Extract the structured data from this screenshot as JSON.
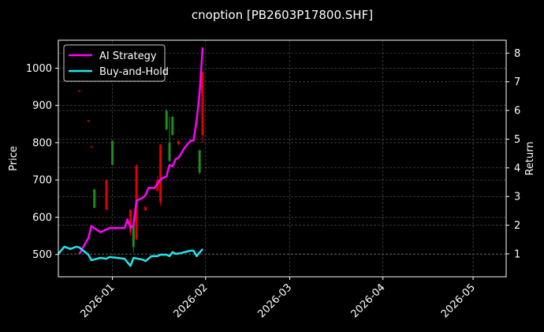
{
  "chart_data": {
    "type": "line",
    "title": "cnoption [PB2603P17800.SHF]",
    "xlabel": "",
    "ylabel_left": "Price",
    "ylabel_right": "Return",
    "x_ticks": [
      "2026-01",
      "2026-02",
      "2026-03",
      "2026-04",
      "2026-05"
    ],
    "y_left_ticks": [
      500,
      600,
      700,
      800,
      900,
      1000
    ],
    "y_right_ticks": [
      1,
      2,
      3,
      4,
      5,
      6,
      7,
      8
    ],
    "y_left_range": [
      440,
      1075
    ],
    "y_right_range": [
      0.2,
      8.45
    ],
    "x_range": [
      "2025-12-14",
      "2026-05-12"
    ],
    "grid": true,
    "legend_position": "upper left",
    "colors": {
      "ai_strategy": "#ff00ff",
      "buy_and_hold": "#22e5ee",
      "candle_up": "#1e8c1e",
      "candle_down": "#e00000",
      "background": "#000000",
      "axes": "#ffffff",
      "grid": "#555555"
    },
    "series": [
      {
        "name": "AI Strategy",
        "axis": "right",
        "dates": [
          "2025-12-21",
          "2025-12-24",
          "2025-12-25",
          "2025-12-28",
          "2025-12-31",
          "2026-01-01",
          "2026-01-05",
          "2026-01-06",
          "2026-01-07",
          "2026-01-08",
          "2026-01-09",
          "2026-01-11",
          "2026-01-12",
          "2026-01-13",
          "2026-01-15",
          "2026-01-17",
          "2026-01-18",
          "2026-01-19",
          "2026-01-20",
          "2026-01-21",
          "2026-01-22",
          "2026-01-23",
          "2026-01-25",
          "2026-01-27",
          "2026-01-28",
          "2026-01-29",
          "2026-01-30",
          "2026-01-31"
        ],
        "values": [
          1.0,
          1.55,
          1.97,
          1.75,
          1.9,
          1.9,
          1.9,
          2.2,
          1.9,
          2.0,
          2.85,
          2.95,
          3.05,
          3.3,
          3.3,
          3.6,
          3.65,
          3.7,
          4.1,
          4.05,
          4.3,
          4.35,
          4.7,
          4.95,
          4.95,
          5.65,
          6.6,
          8.2
        ]
      },
      {
        "name": "Buy-and-Hold",
        "axis": "right",
        "dates": [
          "2025-12-14",
          "2025-12-16",
          "2025-12-18",
          "2025-12-20",
          "2025-12-21",
          "2025-12-24",
          "2025-12-25",
          "2025-12-28",
          "2025-12-30",
          "2025-12-31",
          "2026-01-05",
          "2026-01-07",
          "2026-01-08",
          "2026-01-11",
          "2026-01-12",
          "2026-01-14",
          "2026-01-16",
          "2026-01-17",
          "2026-01-19",
          "2026-01-20",
          "2026-01-21",
          "2026-01-22",
          "2026-01-24",
          "2026-01-25",
          "2026-01-27",
          "2026-01-28",
          "2026-01-29",
          "2026-01-31"
        ],
        "values": [
          1.0,
          1.25,
          1.17,
          1.25,
          1.22,
          0.97,
          0.78,
          0.86,
          0.83,
          0.89,
          0.83,
          0.58,
          0.86,
          0.8,
          0.75,
          0.92,
          0.92,
          0.97,
          0.97,
          0.92,
          1.06,
          1.0,
          1.03,
          1.06,
          1.11,
          1.11,
          0.92,
          1.17
        ]
      }
    ],
    "candles": [
      {
        "date": "2025-12-21",
        "open": 940,
        "close": 938,
        "high": 941,
        "low": 937
      },
      {
        "date": "2025-12-24",
        "open": 860,
        "close": 858,
        "high": 861,
        "low": 857
      },
      {
        "date": "2025-12-25",
        "open": 790,
        "close": 788,
        "high": 791,
        "low": 787
      },
      {
        "date": "2025-12-26",
        "open": 625,
        "close": 675,
        "high": 675,
        "low": 625
      },
      {
        "date": "2025-12-30",
        "open": 700,
        "close": 620,
        "high": 700,
        "low": 620
      },
      {
        "date": "2026-01-01",
        "open": 740,
        "close": 805,
        "high": 805,
        "low": 740
      },
      {
        "date": "2026-01-07",
        "open": 620,
        "close": 560,
        "high": 620,
        "low": 550
      },
      {
        "date": "2026-01-08",
        "open": 520,
        "close": 580,
        "high": 580,
        "low": 505
      },
      {
        "date": "2026-01-09",
        "open": 740,
        "close": 540,
        "high": 740,
        "low": 540
      },
      {
        "date": "2026-01-12",
        "open": 628,
        "close": 618,
        "high": 628,
        "low": 618
      },
      {
        "date": "2026-01-16",
        "open": 700,
        "close": 670,
        "high": 710,
        "low": 670
      },
      {
        "date": "2026-01-17",
        "open": 795,
        "close": 640,
        "high": 795,
        "low": 630
      },
      {
        "date": "2026-01-19",
        "open": 835,
        "close": 885,
        "high": 890,
        "low": 835
      },
      {
        "date": "2026-01-20",
        "open": 750,
        "close": 800,
        "high": 870,
        "low": 750
      },
      {
        "date": "2026-01-21",
        "open": 820,
        "close": 870,
        "high": 870,
        "low": 820
      },
      {
        "date": "2026-01-23",
        "open": 805,
        "close": 795,
        "high": 805,
        "low": 795
      },
      {
        "date": "2026-01-30",
        "open": 720,
        "close": 780,
        "high": 780,
        "low": 715
      },
      {
        "date": "2026-01-31",
        "open": 990,
        "close": 820,
        "high": 990,
        "low": 800
      }
    ]
  }
}
